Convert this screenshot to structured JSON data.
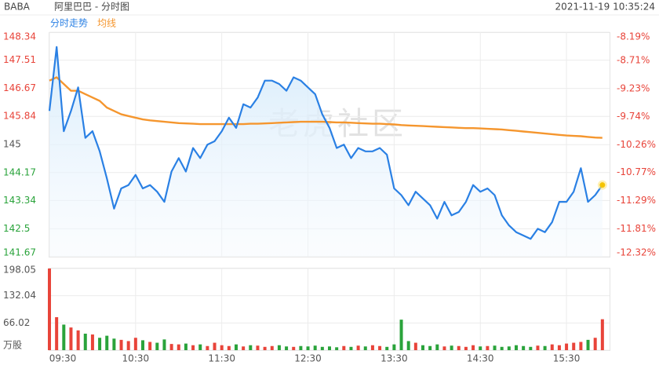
{
  "header": {
    "symbol": "BABA",
    "name": "阿里巴巴 - 分时图",
    "timestamp": "2021-11-19 10:35:24"
  },
  "chart_data": [
    {
      "type": "line",
      "watermark": "老虎社区",
      "xlim": [
        "09:30",
        "16:00"
      ],
      "x": [
        "09:30",
        "09:35",
        "09:40",
        "09:45",
        "09:50",
        "09:55",
        "10:00",
        "10:05",
        "10:10",
        "10:15",
        "10:20",
        "10:25",
        "10:30",
        "10:35",
        "10:40",
        "10:45",
        "10:50",
        "10:55",
        "11:00",
        "11:05",
        "11:10",
        "11:15",
        "11:20",
        "11:25",
        "11:30",
        "11:35",
        "11:40",
        "11:45",
        "11:50",
        "11:55",
        "12:00",
        "12:05",
        "12:10",
        "12:15",
        "12:20",
        "12:25",
        "12:30",
        "12:35",
        "12:40",
        "12:45",
        "12:50",
        "12:55",
        "13:00",
        "13:05",
        "13:10",
        "13:15",
        "13:20",
        "13:25",
        "13:30",
        "13:35",
        "13:40",
        "13:45",
        "13:50",
        "13:55",
        "14:00",
        "14:05",
        "14:10",
        "14:15",
        "14:20",
        "14:25",
        "14:30",
        "14:35",
        "14:40",
        "14:45",
        "14:50",
        "14:55",
        "15:00",
        "15:05",
        "15:10",
        "15:15",
        "15:20",
        "15:25",
        "15:30",
        "15:35",
        "15:40",
        "15:45",
        "15:50",
        "15:55"
      ],
      "series": [
        {
          "name": "分时走势",
          "color": "#2a80e4",
          "area": true,
          "values": [
            146.0,
            147.9,
            145.4,
            146.0,
            146.7,
            145.2,
            145.4,
            144.8,
            144.0,
            143.1,
            143.7,
            143.8,
            144.1,
            143.7,
            143.8,
            143.6,
            143.3,
            144.2,
            144.6,
            144.2,
            144.9,
            144.6,
            145.0,
            145.1,
            145.4,
            145.8,
            145.5,
            146.2,
            146.1,
            146.4,
            146.9,
            146.9,
            146.8,
            146.6,
            147.0,
            146.9,
            146.7,
            146.5,
            145.9,
            145.5,
            144.9,
            145.0,
            144.6,
            144.9,
            144.8,
            144.8,
            144.9,
            144.7,
            143.7,
            143.5,
            143.2,
            143.6,
            143.4,
            143.2,
            142.8,
            143.3,
            142.9,
            143.0,
            143.3,
            143.8,
            143.6,
            143.7,
            143.5,
            142.9,
            142.6,
            142.4,
            142.3,
            142.2,
            142.5,
            142.4,
            142.7,
            143.3,
            143.3,
            143.6,
            144.3,
            143.3,
            143.5,
            143.8
          ]
        },
        {
          "name": "均线",
          "color": "#f5962e",
          "values": [
            146.9,
            147.0,
            146.8,
            146.6,
            146.6,
            146.5,
            146.4,
            146.3,
            146.1,
            146.0,
            145.9,
            145.85,
            145.8,
            145.75,
            145.72,
            145.7,
            145.68,
            145.66,
            145.64,
            145.63,
            145.62,
            145.61,
            145.61,
            145.61,
            145.61,
            145.61,
            145.61,
            145.61,
            145.62,
            145.62,
            145.63,
            145.64,
            145.65,
            145.66,
            145.67,
            145.68,
            145.68,
            145.68,
            145.68,
            145.67,
            145.66,
            145.66,
            145.65,
            145.64,
            145.63,
            145.62,
            145.62,
            145.61,
            145.6,
            145.58,
            145.57,
            145.56,
            145.55,
            145.54,
            145.53,
            145.52,
            145.51,
            145.5,
            145.49,
            145.49,
            145.48,
            145.47,
            145.46,
            145.45,
            145.43,
            145.41,
            145.39,
            145.37,
            145.35,
            145.33,
            145.31,
            145.29,
            145.27,
            145.26,
            145.25,
            145.23,
            145.21,
            145.2
          ]
        }
      ],
      "ylim": [
        141.67,
        148.34
      ],
      "yticks": [
        141.67,
        142.5,
        143.34,
        144.17,
        145.0,
        145.84,
        146.67,
        147.51,
        148.34
      ],
      "y2lim": [
        -12.32,
        -8.19
      ],
      "y2ticks": [
        {
          "value": -12.32,
          "label": "-12.32%"
        },
        {
          "value": -11.81,
          "label": "-11.81%"
        },
        {
          "value": -11.29,
          "label": "-11.29%"
        },
        {
          "value": -10.77,
          "label": "-10.77%"
        },
        {
          "value": -10.26,
          "label": "-10.26%"
        },
        {
          "value": -9.74,
          "label": "-9.74%"
        },
        {
          "value": -9.23,
          "label": "-9.23%"
        },
        {
          "value": -8.71,
          "label": "-8.71%"
        },
        {
          "value": -8.19,
          "label": "-8.19%"
        }
      ],
      "grid": true,
      "up_color": "#e8443a",
      "down_color": "#2aa33b",
      "y2_color": "#e8443a"
    },
    {
      "type": "bar",
      "xlim": [
        "09:30",
        "16:00"
      ],
      "x": [
        "09:30",
        "09:35",
        "09:40",
        "09:45",
        "09:50",
        "09:55",
        "10:00",
        "10:05",
        "10:10",
        "10:15",
        "10:20",
        "10:25",
        "10:30",
        "10:35",
        "10:40",
        "10:45",
        "10:50",
        "10:55",
        "11:00",
        "11:05",
        "11:10",
        "11:15",
        "11:20",
        "11:25",
        "11:30",
        "11:35",
        "11:40",
        "11:45",
        "11:50",
        "11:55",
        "12:00",
        "12:05",
        "12:10",
        "12:15",
        "12:20",
        "12:25",
        "12:30",
        "12:35",
        "12:40",
        "12:45",
        "12:50",
        "12:55",
        "13:00",
        "13:05",
        "13:10",
        "13:15",
        "13:20",
        "13:25",
        "13:30",
        "13:35",
        "13:40",
        "13:45",
        "13:50",
        "13:55",
        "14:00",
        "14:05",
        "14:10",
        "14:15",
        "14:20",
        "14:25",
        "14:30",
        "14:35",
        "14:40",
        "14:45",
        "14:50",
        "14:55",
        "15:00",
        "15:05",
        "15:10",
        "15:15",
        "15:20",
        "15:25",
        "15:30",
        "15:35",
        "15:40",
        "15:45",
        "15:50",
        "15:55"
      ],
      "values": [
        198,
        80,
        62,
        55,
        48,
        40,
        38,
        30,
        35,
        28,
        25,
        22,
        30,
        24,
        20,
        18,
        26,
        15,
        14,
        16,
        12,
        14,
        10,
        18,
        12,
        10,
        14,
        9,
        12,
        11,
        8,
        10,
        12,
        9,
        8,
        10,
        9,
        11,
        8,
        9,
        7,
        10,
        8,
        11,
        9,
        12,
        10,
        8,
        14,
        74,
        22,
        18,
        12,
        10,
        14,
        9,
        11,
        10,
        8,
        12,
        9,
        10,
        11,
        8,
        9,
        12,
        10,
        8,
        11,
        10,
        14,
        12,
        16,
        18,
        20,
        25,
        30,
        75
      ],
      "ylim": [
        0,
        198.05
      ],
      "yticks": [
        {
          "value": 0,
          "label": "万股"
        },
        66.02,
        132.04,
        198.05
      ],
      "xticks": [
        "09:30",
        "10:30",
        "11:30",
        "12:30",
        "13:30",
        "14:30",
        "15:30"
      ],
      "grid": true,
      "up_color": "#e8443a",
      "down_color": "#2aa33b"
    }
  ]
}
